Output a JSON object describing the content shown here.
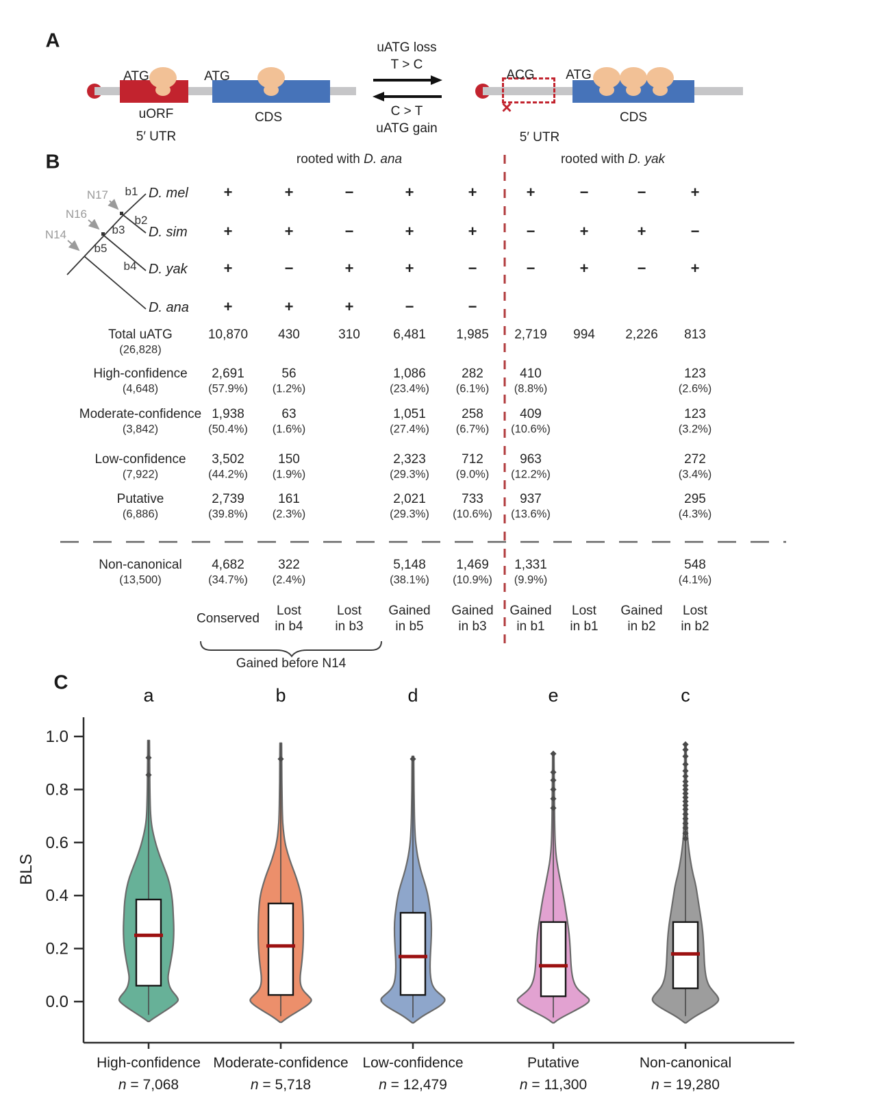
{
  "colors": {
    "uorf_red": "#c2232e",
    "cds_blue": "#4673b9",
    "ribosome_tan": "#f2c196",
    "mrna_gray": "#c6c6c8",
    "divider_red": "#b0393b",
    "median_red": "#9c1111",
    "tree_gray": "#9a9a9a"
  },
  "panelA": {
    "label": "A",
    "left": {
      "atg_uorf": "ATG",
      "atg_cds": "ATG",
      "uorf_label": "uORF",
      "utr_label": "5′ UTR",
      "cds_label": "CDS"
    },
    "transition": {
      "loss_top": "uATG loss",
      "loss_sub": "T > C",
      "gain_top": "C > T",
      "gain_sub": "uATG gain"
    },
    "right": {
      "acg": "ACG",
      "atg": "ATG",
      "cross": "×",
      "utr_label": "5′ UTR",
      "cds_label": "CDS"
    }
  },
  "panelB": {
    "label": "B",
    "header_left_prefix": "rooted with ",
    "header_left_species": "D. ana",
    "header_right_prefix": "rooted with ",
    "header_right_species": "D. yak",
    "tree": {
      "n17": "N17",
      "n16": "N16",
      "n14": "N14",
      "b1": "b1",
      "b2": "b2",
      "b3": "b3",
      "b4": "b4",
      "b5": "b5",
      "sp1": "D. mel",
      "sp2": "D. sim",
      "sp3": "D. yak",
      "sp4": "D. ana"
    },
    "matrix": {
      "left": [
        [
          "+",
          "+",
          "−",
          "+",
          "+"
        ],
        [
          "+",
          "+",
          "−",
          "+",
          "+"
        ],
        [
          "+",
          "−",
          "+",
          "+",
          "−"
        ],
        [
          "+",
          "+",
          "+",
          "−",
          "−"
        ]
      ],
      "right": [
        [
          "+",
          "−",
          "−",
          "+"
        ],
        [
          "−",
          "+",
          "+",
          "−"
        ],
        [
          "−",
          "+",
          "−",
          "+"
        ],
        [
          "",
          "",
          "",
          ""
        ]
      ]
    },
    "rows": [
      {
        "label": "Total uATG",
        "sub": "(26,828)",
        "values": [
          "10,870",
          "430",
          "310",
          "6,481",
          "1,985",
          "2,719",
          "994",
          "2,226",
          "813"
        ],
        "pcts": [
          "",
          "",
          "",
          "",
          "",
          "",
          "",
          "",
          ""
        ]
      },
      {
        "label": "High-confidence",
        "sub": "(4,648)",
        "values": [
          "2,691",
          "56",
          "",
          "1,086",
          "282",
          "410",
          "",
          "",
          "123"
        ],
        "pcts": [
          "(57.9%)",
          "(1.2%)",
          "",
          "(23.4%)",
          "(6.1%)",
          "(8.8%)",
          "",
          "",
          "(2.6%)"
        ]
      },
      {
        "label": "Moderate-confidence",
        "sub": "(3,842)",
        "values": [
          "1,938",
          "63",
          "",
          "1,051",
          "258",
          "409",
          "",
          "",
          "123"
        ],
        "pcts": [
          "(50.4%)",
          "(1.6%)",
          "",
          "(27.4%)",
          "(6.7%)",
          "(10.6%)",
          "",
          "",
          "(3.2%)"
        ]
      },
      {
        "label": "Low-confidence",
        "sub": "(7,922)",
        "values": [
          "3,502",
          "150",
          "",
          "2,323",
          "712",
          "963",
          "",
          "",
          "272"
        ],
        "pcts": [
          "(44.2%)",
          "(1.9%)",
          "",
          "(29.3%)",
          "(9.0%)",
          "(12.2%)",
          "",
          "",
          "(3.4%)"
        ]
      },
      {
        "label": "Putative",
        "sub": "(6,886)",
        "values": [
          "2,739",
          "161",
          "",
          "2,021",
          "733",
          "937",
          "",
          "",
          "295"
        ],
        "pcts": [
          "(39.8%)",
          "(2.3%)",
          "",
          "(29.3%)",
          "(10.6%)",
          "(13.6%)",
          "",
          "",
          "(4.3%)"
        ]
      },
      {
        "label": "Non-canonical",
        "sub": "(13,500)",
        "values": [
          "4,682",
          "322",
          "",
          "5,148",
          "1,469",
          "1,331",
          "",
          "",
          "548"
        ],
        "pcts": [
          "(34.7%)",
          "(2.4%)",
          "",
          "(38.1%)",
          "(10.9%)",
          "(9.9%)",
          "",
          "",
          "(4.1%)"
        ]
      }
    ],
    "footer_columns": [
      [
        "Conserved"
      ],
      [
        "Lost",
        "in b4"
      ],
      [
        "Lost",
        "in b3"
      ],
      [
        "Gained",
        "in b5"
      ],
      [
        "Gained",
        "in b3"
      ],
      [
        "Gained",
        "in b1"
      ],
      [
        "Lost",
        "in b1"
      ],
      [
        "Gained",
        "in b2"
      ],
      [
        "Lost",
        "in b2"
      ]
    ],
    "brace_label": "Gained before N14"
  },
  "panelC_label": "C",
  "chart_data": {
    "type": "violin",
    "title": "",
    "xlabel": "",
    "ylabel": "BLS",
    "ylim": [
      -0.12,
      1.08
    ],
    "yticks": [
      0.0,
      0.2,
      0.4,
      0.6,
      0.8,
      1.0
    ],
    "grid": false,
    "categories": [
      "High-confidence",
      "Moderate-confidence",
      "Low-confidence",
      "Putative",
      "Non-canonical"
    ],
    "series": [
      {
        "name": "High-confidence",
        "n_label": "n = 7,068",
        "letter": "a",
        "color": "#67b198",
        "box": {
          "q1": 0.06,
          "median": 0.25,
          "q3": 0.385
        },
        "whisker_top": 0.985,
        "whisker_bottom": -0.05,
        "outliers": [
          0.855,
          0.92
        ],
        "profile": [
          [
            0.985,
            1.2
          ],
          [
            0.9,
            1.5
          ],
          [
            0.8,
            1.8
          ],
          [
            0.72,
            2.5
          ],
          [
            0.67,
            4
          ],
          [
            0.63,
            7
          ],
          [
            0.59,
            11
          ],
          [
            0.55,
            16
          ],
          [
            0.51,
            22
          ],
          [
            0.47,
            28
          ],
          [
            0.43,
            32
          ],
          [
            0.38,
            35
          ],
          [
            0.33,
            36
          ],
          [
            0.27,
            37
          ],
          [
            0.21,
            36
          ],
          [
            0.16,
            33
          ],
          [
            0.12,
            30
          ],
          [
            0.09,
            28
          ],
          [
            0.06,
            30
          ],
          [
            0.04,
            34
          ],
          [
            0.02,
            41
          ],
          [
            0.005,
            44
          ],
          [
            -0.01,
            38
          ],
          [
            -0.03,
            27
          ],
          [
            -0.05,
            15
          ],
          [
            -0.065,
            6
          ],
          [
            -0.075,
            1
          ]
        ]
      },
      {
        "name": "Moderate-confidence",
        "n_label": "n = 5,718",
        "letter": "b",
        "color": "#ec8f6b",
        "box": {
          "q1": 0.025,
          "median": 0.21,
          "q3": 0.37
        },
        "whisker_top": 0.975,
        "whisker_bottom": -0.055,
        "outliers": [
          0.915
        ],
        "profile": [
          [
            0.975,
            1.2
          ],
          [
            0.88,
            1.5
          ],
          [
            0.78,
            1.8
          ],
          [
            0.7,
            2.4
          ],
          [
            0.65,
            3.5
          ],
          [
            0.6,
            6
          ],
          [
            0.56,
            10
          ],
          [
            0.52,
            15
          ],
          [
            0.48,
            21
          ],
          [
            0.44,
            26
          ],
          [
            0.4,
            30
          ],
          [
            0.35,
            32
          ],
          [
            0.29,
            33
          ],
          [
            0.23,
            33
          ],
          [
            0.18,
            32
          ],
          [
            0.13,
            30
          ],
          [
            0.09,
            28
          ],
          [
            0.06,
            29
          ],
          [
            0.04,
            33
          ],
          [
            0.02,
            41
          ],
          [
            0.005,
            46
          ],
          [
            -0.012,
            40
          ],
          [
            -0.032,
            28
          ],
          [
            -0.052,
            15
          ],
          [
            -0.068,
            6
          ],
          [
            -0.078,
            1
          ]
        ]
      },
      {
        "name": "Low-confidence",
        "n_label": "n = 12,479",
        "letter": "d",
        "color": "#8ea6cb",
        "box": {
          "q1": 0.025,
          "median": 0.17,
          "q3": 0.335
        },
        "whisker_top": 0.925,
        "whisker_bottom": -0.06,
        "outliers": [
          0.915
        ],
        "profile": [
          [
            0.925,
            1.2
          ],
          [
            0.84,
            1.5
          ],
          [
            0.75,
            1.8
          ],
          [
            0.67,
            2.4
          ],
          [
            0.61,
            3.5
          ],
          [
            0.56,
            6
          ],
          [
            0.52,
            9
          ],
          [
            0.48,
            13
          ],
          [
            0.44,
            18
          ],
          [
            0.4,
            22
          ],
          [
            0.35,
            25
          ],
          [
            0.3,
            27
          ],
          [
            0.25,
            27
          ],
          [
            0.2,
            26
          ],
          [
            0.15,
            25
          ],
          [
            0.11,
            25
          ],
          [
            0.07,
            27
          ],
          [
            0.045,
            32
          ],
          [
            0.025,
            41
          ],
          [
            0.008,
            48
          ],
          [
            -0.01,
            43
          ],
          [
            -0.03,
            31
          ],
          [
            -0.05,
            17
          ],
          [
            -0.068,
            7
          ],
          [
            -0.08,
            1
          ]
        ]
      },
      {
        "name": "Putative",
        "n_label": "n = 11,300",
        "letter": "e",
        "color": "#e2a2d1",
        "box": {
          "q1": 0.02,
          "median": 0.135,
          "q3": 0.3
        },
        "whisker_top": 0.93,
        "whisker_bottom": -0.06,
        "outliers": [
          0.73,
          0.765,
          0.8,
          0.835,
          0.865,
          0.935
        ],
        "profile": [
          [
            0.93,
            1
          ],
          [
            0.84,
            1.3
          ],
          [
            0.75,
            1.6
          ],
          [
            0.66,
            2
          ],
          [
            0.59,
            2.8
          ],
          [
            0.54,
            4.5
          ],
          [
            0.5,
            7
          ],
          [
            0.46,
            10
          ],
          [
            0.42,
            13
          ],
          [
            0.38,
            16
          ],
          [
            0.33,
            19
          ],
          [
            0.28,
            22
          ],
          [
            0.23,
            24
          ],
          [
            0.18,
            25
          ],
          [
            0.13,
            26
          ],
          [
            0.09,
            28
          ],
          [
            0.06,
            32
          ],
          [
            0.04,
            38
          ],
          [
            0.02,
            48
          ],
          [
            0.005,
            54
          ],
          [
            -0.012,
            47
          ],
          [
            -0.032,
            33
          ],
          [
            -0.052,
            18
          ],
          [
            -0.068,
            7
          ],
          [
            -0.08,
            1
          ]
        ]
      },
      {
        "name": "Non-canonical",
        "n_label": "n = 19,280",
        "letter": "c",
        "color": "#9d9d9d",
        "box": {
          "q1": 0.05,
          "median": 0.18,
          "q3": 0.3
        },
        "whisker_top": 0.975,
        "whisker_bottom": -0.055,
        "outliers": [
          0.615,
          0.635,
          0.655,
          0.672,
          0.69,
          0.707,
          0.725,
          0.74,
          0.755,
          0.77,
          0.785,
          0.8,
          0.815,
          0.83,
          0.85,
          0.87,
          0.895,
          0.925,
          0.95,
          0.97
        ],
        "profile": [
          [
            0.975,
            1
          ],
          [
            0.88,
            1.2
          ],
          [
            0.78,
            1.5
          ],
          [
            0.68,
            2
          ],
          [
            0.62,
            3
          ],
          [
            0.57,
            5
          ],
          [
            0.52,
            8
          ],
          [
            0.48,
            11
          ],
          [
            0.44,
            15
          ],
          [
            0.39,
            18
          ],
          [
            0.34,
            21
          ],
          [
            0.29,
            24
          ],
          [
            0.24,
            26
          ],
          [
            0.18,
            27
          ],
          [
            0.13,
            28
          ],
          [
            0.09,
            30
          ],
          [
            0.06,
            34
          ],
          [
            0.04,
            40
          ],
          [
            0.02,
            47
          ],
          [
            0.004,
            49
          ],
          [
            -0.014,
            42
          ],
          [
            -0.034,
            29
          ],
          [
            -0.054,
            15
          ],
          [
            -0.07,
            6
          ],
          [
            -0.08,
            1
          ]
        ]
      }
    ]
  }
}
